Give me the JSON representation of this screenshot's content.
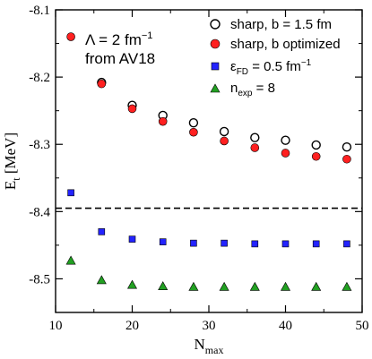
{
  "chart_data": {
    "type": "scatter",
    "title": "",
    "xlabel": {
      "base": "N",
      "sub": "max"
    },
    "ylabel": {
      "base": "E",
      "sub": "t",
      "unit": " [MeV]"
    },
    "xlim": [
      10,
      50
    ],
    "ylim": [
      -8.55,
      -8.1
    ],
    "xticks": [
      10,
      20,
      30,
      40,
      50
    ],
    "yticks": [
      -8.1,
      -8.2,
      -8.3,
      -8.4,
      -8.5
    ],
    "xtick_labels": [
      "10",
      "20",
      "30",
      "40",
      "50"
    ],
    "ytick_labels": [
      "-8.1",
      "-8.2",
      "-8.3",
      "-8.4",
      "-8.5"
    ],
    "grid": false,
    "legend_position": "top-right",
    "annotation": {
      "line1_main": "Λ = 2 fm",
      "line1_sup": "−1",
      "line2": "from AV18"
    },
    "reference_line": {
      "y": -8.395,
      "style": "dashed",
      "color": "#000000"
    },
    "series": [
      {
        "name": "sharp,  b = 1.5 fm",
        "legend_label": "sharp,  b = 1.5 fm",
        "marker": "circle-open",
        "color": "#000000",
        "x": [
          16,
          20,
          24,
          28,
          32,
          36,
          40,
          44,
          48
        ],
        "y": [
          -8.208,
          -8.242,
          -8.257,
          -8.268,
          -8.281,
          -8.29,
          -8.294,
          -8.301,
          -8.304
        ]
      },
      {
        "name": "sharp,  b optimized",
        "legend_label": "sharp,  b optimized",
        "marker": "circle-filled",
        "color": "#ff2020",
        "x": [
          12,
          16,
          20,
          24,
          28,
          32,
          36,
          40,
          44,
          48
        ],
        "y": [
          -8.14,
          -8.21,
          -8.247,
          -8.266,
          -8.282,
          -8.295,
          -8.305,
          -8.313,
          -8.318,
          -8.322
        ]
      },
      {
        "name": "εFD = 0.5 fm−1",
        "legend_label": {
          "base": "ε",
          "sub": "FD",
          "rest": " = 0.5 fm",
          "sup": "−1"
        },
        "marker": "square",
        "color": "#2323ff",
        "x": [
          12,
          16,
          20,
          24,
          28,
          32,
          36,
          40,
          44,
          48
        ],
        "y": [
          -8.372,
          -8.43,
          -8.441,
          -8.445,
          -8.447,
          -8.447,
          -8.448,
          -8.448,
          -8.448,
          -8.448
        ]
      },
      {
        "name": "nexp = 8",
        "legend_label": {
          "base": "n",
          "sub": "exp",
          "rest": " = 8"
        },
        "marker": "triangle",
        "color": "#22a022",
        "x": [
          12,
          16,
          20,
          24,
          28,
          32,
          36,
          40,
          44,
          48
        ],
        "y": [
          -8.473,
          -8.502,
          -8.509,
          -8.511,
          -8.512,
          -8.512,
          -8.512,
          -8.512,
          -8.512,
          -8.512
        ]
      }
    ]
  }
}
